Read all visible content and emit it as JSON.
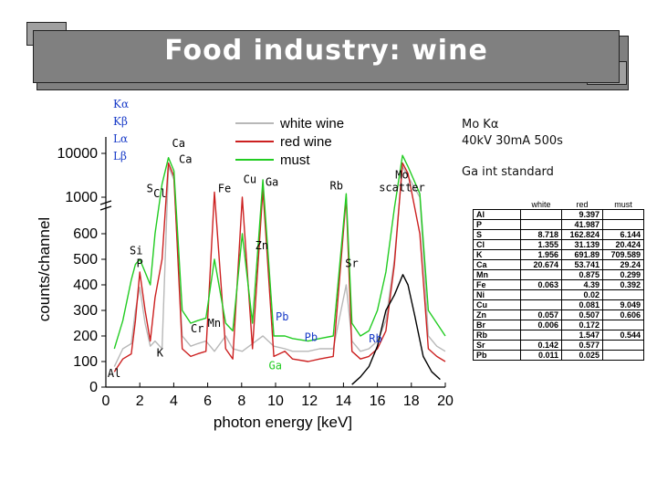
{
  "title": "Food industry: wine",
  "side_notes": {
    "source": "Mo Kα",
    "settings": "40kV 30mA 500s",
    "standard": "Ga int standard"
  },
  "line_key": [
    {
      "label": "Kα",
      "color": "#1a3cc8"
    },
    {
      "label": "Kβ",
      "color": "#1a3cc8"
    },
    {
      "label": "Lα",
      "color": "#1a3cc8"
    },
    {
      "label": "Lβ",
      "color": "#1a3cc8"
    }
  ],
  "chart_data": {
    "type": "line",
    "xlabel": "photon energy [keV]",
    "ylabel": "counts/channel",
    "xlim": [
      0,
      20
    ],
    "x_ticks": [
      "0",
      "2",
      "4",
      "6",
      "8",
      "10",
      "12",
      "14",
      "16",
      "18",
      "20"
    ],
    "y_ticks_lower": [
      "0",
      "100",
      "200",
      "300",
      "400",
      "500",
      "600"
    ],
    "y_ticks_upper": [
      "1000",
      "10000"
    ],
    "axis_break": true,
    "legend_position": "top-right",
    "series": [
      {
        "name": "white wine",
        "color": "#b8b8b8",
        "x": [
          0.5,
          1.0,
          1.5,
          1.74,
          2.0,
          2.31,
          2.62,
          2.9,
          3.31,
          3.69,
          4.01,
          4.5,
          5.0,
          5.41,
          5.9,
          6.4,
          7.06,
          7.48,
          8.04,
          8.64,
          9.25,
          9.9,
          10.55,
          11.0,
          11.92,
          12.6,
          13.4,
          14.16,
          14.5,
          15.0,
          15.5,
          16.0,
          16.5,
          17.0,
          17.48,
          17.8,
          18.5,
          19.0,
          19.5,
          20.0
        ],
        "y": [
          80,
          150,
          170,
          300,
          390,
          250,
          160,
          180,
          150,
          5000,
          2500,
          200,
          160,
          170,
          180,
          140,
          200,
          150,
          140,
          170,
          200,
          160,
          150,
          140,
          140,
          150,
          150,
          400,
          180,
          140,
          150,
          180,
          260,
          500,
          5000,
          3000,
          800,
          200,
          160,
          140
        ]
      },
      {
        "name": "red wine",
        "color": "#cc2020",
        "x": [
          0.5,
          1.0,
          1.5,
          1.74,
          2.0,
          2.31,
          2.62,
          2.9,
          3.31,
          3.69,
          4.01,
          4.5,
          5.0,
          5.41,
          5.9,
          6.4,
          7.06,
          7.48,
          8.04,
          8.64,
          9.25,
          9.9,
          10.55,
          11.0,
          11.92,
          12.6,
          13.4,
          14.16,
          14.5,
          15.0,
          15.5,
          16.0,
          16.5,
          17.0,
          17.48,
          17.8,
          18.5,
          19.0,
          19.5,
          20.0
        ],
        "y": [
          60,
          110,
          130,
          260,
          450,
          300,
          180,
          350,
          500,
          6000,
          3000,
          150,
          120,
          130,
          140,
          1300,
          150,
          110,
          1000,
          150,
          1500,
          120,
          140,
          110,
          100,
          110,
          120,
          900,
          140,
          110,
          120,
          150,
          220,
          480,
          6000,
          3500,
          600,
          150,
          120,
          100
        ]
      },
      {
        "name": "must",
        "color": "#22cc22",
        "x": [
          0.5,
          1.0,
          1.5,
          1.74,
          2.0,
          2.31,
          2.62,
          2.9,
          3.31,
          3.69,
          4.01,
          4.5,
          5.0,
          5.41,
          5.9,
          6.4,
          7.06,
          7.48,
          8.04,
          8.64,
          9.25,
          9.9,
          10.55,
          11.0,
          11.92,
          12.6,
          13.4,
          14.16,
          14.5,
          15.0,
          15.5,
          16.0,
          16.5,
          17.0,
          17.48,
          17.8,
          18.5,
          19.0,
          19.5,
          20.0
        ],
        "y": [
          150,
          260,
          420,
          480,
          500,
          450,
          400,
          600,
          2000,
          8000,
          4000,
          300,
          250,
          260,
          270,
          500,
          250,
          220,
          600,
          250,
          2500,
          200,
          200,
          190,
          180,
          190,
          200,
          1200,
          250,
          200,
          220,
          300,
          450,
          700,
          9000,
          5000,
          1200,
          300,
          250,
          200
        ]
      },
      {
        "name": "",
        "color": "#000000",
        "x": [
          14.5,
          15.0,
          15.5,
          16.0,
          16.5,
          17.0,
          17.5,
          17.8,
          18.2,
          18.7,
          19.2,
          19.7
        ],
        "y": [
          10,
          40,
          80,
          160,
          300,
          360,
          440,
          400,
          280,
          120,
          60,
          30
        ]
      }
    ],
    "line_labels": [
      {
        "text": "Al",
        "x": 0.1,
        "y": 40,
        "color": "#000000"
      },
      {
        "text": "Si",
        "x": 1.4,
        "y": 520,
        "color": "#000000"
      },
      {
        "text": "P",
        "x": 1.8,
        "y": 470,
        "color": "#000000"
      },
      {
        "text": "S",
        "x": 2.4,
        "y": 1300,
        "color": "#000000"
      },
      {
        "text": "Cl",
        "x": 2.8,
        "y": 1000,
        "color": "#000000"
      },
      {
        "text": "K",
        "x": 3.0,
        "y": 120,
        "color": "#000000"
      },
      {
        "text": "Ca",
        "x": 3.9,
        "y": 14000,
        "color": "#000000"
      },
      {
        "text": "Ca",
        "x": 4.3,
        "y": 6000,
        "color": "#000000"
      },
      {
        "text": "Cr",
        "x": 5.0,
        "y": 215,
        "color": "#000000"
      },
      {
        "text": "Mn",
        "x": 6.0,
        "y": 235,
        "color": "#000000"
      },
      {
        "text": "Fe",
        "x": 6.6,
        "y": 1300,
        "color": "#000000"
      },
      {
        "text": "Cu",
        "x": 8.1,
        "y": 2100,
        "color": "#000000"
      },
      {
        "text": "Ga",
        "x": 9.4,
        "y": 1800,
        "color": "#000000"
      },
      {
        "text": "Zn",
        "x": 8.8,
        "y": 540,
        "color": "#000000"
      },
      {
        "text": "Pb",
        "x": 10.0,
        "y": 260,
        "color": "#1a3cc8"
      },
      {
        "text": "Pb",
        "x": 11.7,
        "y": 180,
        "color": "#1a3cc8"
      },
      {
        "text": "Ga",
        "x": 9.6,
        "y": 70,
        "color": "#22cc22"
      },
      {
        "text": "Rb",
        "x": 13.2,
        "y": 1500,
        "color": "#000000"
      },
      {
        "text": "Sr",
        "x": 14.1,
        "y": 470,
        "color": "#000000"
      },
      {
        "text": "Rb",
        "x": 15.5,
        "y": 175,
        "color": "#1a3cc8"
      }
    ],
    "scatter_label": {
      "line1": "Mo",
      "line2": "scatter",
      "x": 16.8,
      "y": 2000
    }
  },
  "table": {
    "columns": [
      "",
      "white",
      "red",
      "must"
    ],
    "rows": [
      [
        "Al",
        "",
        "9.397",
        ""
      ],
      [
        "P",
        "",
        "41.987",
        ""
      ],
      [
        "S",
        "8.718",
        "162.824",
        "6.144"
      ],
      [
        "Cl",
        "1.355",
        "31.139",
        "20.424"
      ],
      [
        "K",
        "1.956",
        "691.89",
        "709.589"
      ],
      [
        "Ca",
        "20.674",
        "53.741",
        "29.24"
      ],
      [
        "Mn",
        "",
        "0.875",
        "0.299"
      ],
      [
        "Fe",
        "0.063",
        "4.39",
        "0.392"
      ],
      [
        "Ni",
        "",
        "0.02",
        ""
      ],
      [
        "Cu",
        "",
        "0.081",
        "9.049"
      ],
      [
        "Zn",
        "0.057",
        "0.507",
        "0.606"
      ],
      [
        "Br",
        "0.006",
        "0.172",
        ""
      ],
      [
        "Rb",
        "",
        "1.547",
        "0.544"
      ],
      [
        "Sr",
        "0.142",
        "0.577",
        ""
      ],
      [
        "Pb",
        "0.011",
        "0.025",
        ""
      ]
    ]
  }
}
